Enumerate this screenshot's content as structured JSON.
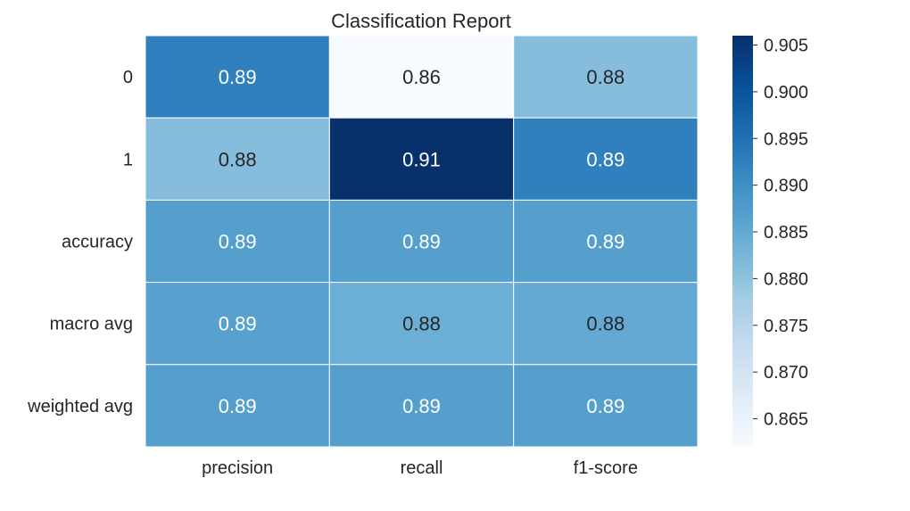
{
  "chart_data": {
    "type": "heatmap",
    "title": "Classification Report",
    "xlabel": "",
    "ylabel": "",
    "columns": [
      "precision",
      "recall",
      "f1-score"
    ],
    "rows": [
      "0",
      "1",
      "accuracy",
      "macro avg",
      "weighted avg"
    ],
    "values": [
      [
        0.8925,
        0.862,
        0.881
      ],
      [
        0.881,
        0.906,
        0.8925
      ],
      [
        0.887,
        0.887,
        0.887
      ],
      [
        0.8865,
        0.884,
        0.885
      ],
      [
        0.887,
        0.887,
        0.887
      ]
    ],
    "annotations": [
      [
        "0.89",
        "0.86",
        "0.88"
      ],
      [
        "0.88",
        "0.91",
        "0.89"
      ],
      [
        "0.89",
        "0.89",
        "0.89"
      ],
      [
        "0.89",
        "0.88",
        "0.88"
      ],
      [
        "0.89",
        "0.89",
        "0.89"
      ]
    ],
    "colormap": "Blues",
    "colorbar": {
      "vmin": 0.862,
      "vmax": 0.906,
      "ticks": [
        0.865,
        0.87,
        0.875,
        0.88,
        0.885,
        0.89,
        0.895,
        0.9,
        0.905
      ],
      "tick_labels": [
        "0.865",
        "0.870",
        "0.875",
        "0.880",
        "0.885",
        "0.890",
        "0.895",
        "0.900",
        "0.905"
      ]
    },
    "colors": {
      "cell_border": "#ffffff",
      "text_dark": "#262626",
      "text_light": "#ffffff",
      "blues": [
        "#f7fbff",
        "#deebf7",
        "#c6dbef",
        "#9ecae1",
        "#6baed6",
        "#4292c6",
        "#2171b5",
        "#08519c",
        "#08306b"
      ]
    }
  }
}
